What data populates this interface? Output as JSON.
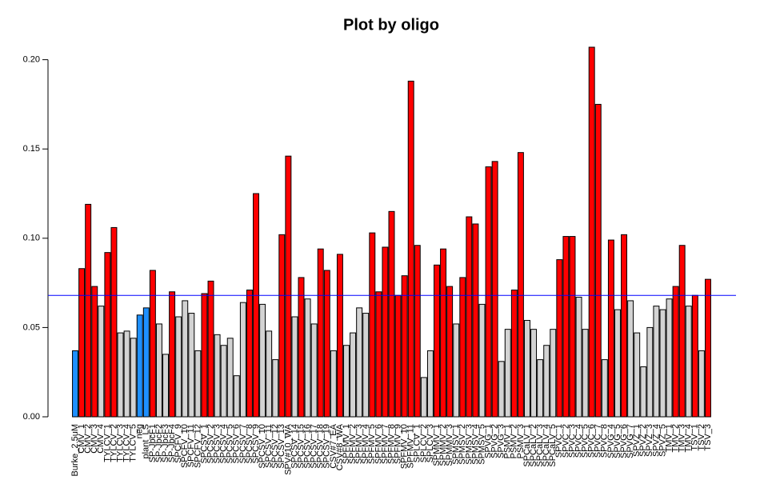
{
  "chart_data": {
    "type": "bar",
    "title": "Plot by oligo",
    "categories": [
      "Burke_2.5uM",
      "CMV_1",
      "CMV_2",
      "CMV_3",
      "CMV_4",
      "TYLCV_1",
      "TYLCV_2",
      "TYLCV_3",
      "TYLCV_4",
      "TYLCV_5",
      "neg",
      "plant_LS",
      "SP-JbcF1",
      "SP-JbcF2",
      "SP-JbcF3",
      "SP-JbcF4",
      "SPCFV_9",
      "SPCFV_10",
      "SPCFV_11",
      "SPCFV_12",
      "SPCSV_1",
      "SPCSV_2",
      "SPCSV_3",
      "SPCSV_4",
      "SPCSV_5",
      "SPCSV_6",
      "SPCSV_7",
      "SPCSV_8",
      "SPCSV_9",
      "SPCSV_10",
      "SPCSV_11",
      "SPCSV_12",
      "SPCSV_13",
      "SPV#10_WA",
      "SPCSV_14",
      "SPCSV_15",
      "SPCSV_16",
      "SPCSV_17",
      "SPCSV_18",
      "SPCSV_19",
      "CSV#7_EA",
      "CSV#8_WA",
      "SPFMV_1",
      "SPFMV_2",
      "SPFMV_3",
      "SPFMV_4",
      "SPFMV_5",
      "SPFMV_6",
      "SPFMV_7",
      "SPFMV_8",
      "SPFMV_9",
      "SPFMV_10",
      "SPFMV_11",
      "SPLCV_1",
      "SPLCV_2",
      "SPLCV_3",
      "SPMMV_1",
      "SPMMV_2",
      "SPMMV_3",
      "SPMSV_1",
      "SPMSV_2",
      "SPMSV_3",
      "SPMSV_4",
      "SPMSV_5",
      "SPVG_1",
      "SPVG_2",
      "SPVG_3",
      "PSMV_1",
      "PSMV_2",
      "PSMV_3",
      "SPCaLV_1",
      "SPCaLV_2",
      "SPCaLV_3",
      "SPCaLV_4",
      "SPCaLV_5",
      "SPVC_1",
      "SPVC_2",
      "SPVC_3",
      "SPVC_4",
      "SPVC_5",
      "SPVC_6",
      "SPVC_7",
      "SPVC_8",
      "SPVG_4",
      "SPVG_5",
      "SPVG_6",
      "SPVG_7",
      "SPVZ_1",
      "SPVZ_2",
      "SPVZ_3",
      "SPVZ_4",
      "SPVZ_5",
      "TMV_1",
      "TMV_2",
      "TMV_3",
      "TMV_4",
      "TSV_1",
      "TSV_2",
      "TSV_3"
    ],
    "values": [
      0.037,
      0.083,
      0.119,
      0.073,
      0.062,
      0.092,
      0.106,
      0.047,
      0.048,
      0.044,
      0.057,
      0.061,
      0.082,
      0.052,
      0.035,
      0.07,
      0.056,
      0.065,
      0.058,
      0.037,
      0.069,
      0.076,
      0.046,
      0.04,
      0.044,
      0.023,
      0.064,
      0.071,
      0.125,
      0.063,
      0.048,
      0.032,
      0.102,
      0.146,
      0.056,
      0.078,
      0.066,
      0.052,
      0.094,
      0.082,
      0.037,
      0.091,
      0.04,
      0.047,
      0.061,
      0.058,
      0.103,
      0.07,
      0.095,
      0.115,
      0.068,
      0.079,
      0.188,
      0.096,
      0.022,
      0.037,
      0.085,
      0.094,
      0.073,
      0.052,
      0.078,
      0.112,
      0.108,
      0.063,
      0.14,
      0.143,
      0.031,
      0.049,
      0.071,
      0.148,
      0.054,
      0.049,
      0.032,
      0.04,
      0.049,
      0.088,
      0.101,
      0.101,
      0.067,
      0.049,
      0.207,
      0.175,
      0.032,
      0.099,
      0.06,
      0.102,
      0.065,
      0.047,
      0.028,
      0.05,
      0.062,
      0.06,
      0.066,
      0.073,
      0.096,
      0.062,
      0.068,
      0.037,
      0.077
    ],
    "colors": [
      "dodgerblue",
      "red",
      "red",
      "red",
      "lightgray",
      "red",
      "red",
      "lightgray",
      "lightgray",
      "lightgray",
      "dodgerblue",
      "dodgerblue",
      "red",
      "lightgray",
      "lightgray",
      "red",
      "lightgray",
      "lightgray",
      "lightgray",
      "lightgray",
      "red",
      "red",
      "lightgray",
      "lightgray",
      "lightgray",
      "lightgray",
      "lightgray",
      "red",
      "red",
      "lightgray",
      "lightgray",
      "lightgray",
      "red",
      "red",
      "lightgray",
      "red",
      "lightgray",
      "lightgray",
      "red",
      "red",
      "lightgray",
      "red",
      "lightgray",
      "lightgray",
      "lightgray",
      "lightgray",
      "red",
      "red",
      "red",
      "red",
      "red",
      "red",
      "red",
      "red",
      "lightgray",
      "lightgray",
      "red",
      "red",
      "red",
      "lightgray",
      "red",
      "red",
      "red",
      "lightgray",
      "red",
      "red",
      "lightgray",
      "lightgray",
      "red",
      "red",
      "lightgray",
      "lightgray",
      "lightgray",
      "lightgray",
      "lightgray",
      "red",
      "red",
      "red",
      "lightgray",
      "lightgray",
      "red",
      "red",
      "lightgray",
      "red",
      "lightgray",
      "red",
      "lightgray",
      "lightgray",
      "lightgray",
      "lightgray",
      "lightgray",
      "lightgray",
      "lightgray",
      "red",
      "red",
      "lightgray",
      "red",
      "lightgray",
      "red"
    ],
    "ylim": [
      0,
      0.207
    ],
    "yticks": [
      {
        "value": 0,
        "label": "0.00"
      },
      {
        "value": 0.05,
        "label": "0.05"
      },
      {
        "value": 0.1,
        "label": "0.10"
      },
      {
        "value": 0.15,
        "label": "0.15"
      },
      {
        "value": 0.2,
        "label": "0.20"
      }
    ],
    "hline": 0.068,
    "hline_color": "blue"
  }
}
